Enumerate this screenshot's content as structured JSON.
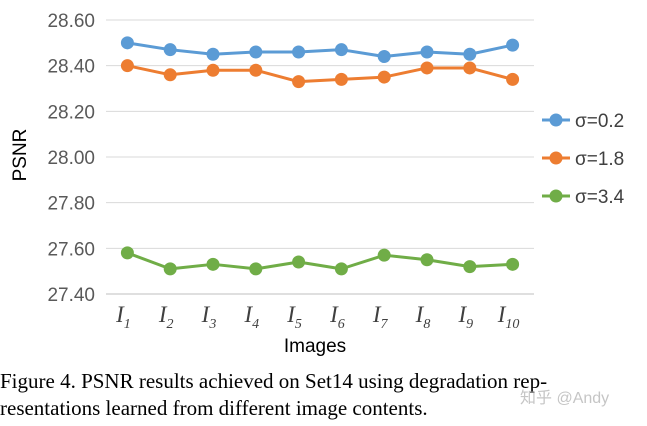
{
  "chart_data": {
    "type": "line",
    "xlabel": "Images",
    "ylabel": "PSNR",
    "ylim": [
      27.4,
      28.6
    ],
    "yticks": [
      "27.40",
      "27.60",
      "27.80",
      "28.00",
      "28.20",
      "28.40",
      "28.60"
    ],
    "grid": true,
    "legend_position": "right",
    "categories": [
      {
        "main": "I",
        "sub": "1"
      },
      {
        "main": "I",
        "sub": "2"
      },
      {
        "main": "I",
        "sub": "3"
      },
      {
        "main": "I",
        "sub": "4"
      },
      {
        "main": "I",
        "sub": "5"
      },
      {
        "main": "I",
        "sub": "6"
      },
      {
        "main": "I",
        "sub": "7"
      },
      {
        "main": "I",
        "sub": "8"
      },
      {
        "main": "I",
        "sub": "9"
      },
      {
        "main": "I",
        "sub": "10"
      }
    ],
    "series": [
      {
        "name": "σ=0.2",
        "color": "#5B9BD5",
        "values": [
          28.5,
          28.47,
          28.45,
          28.46,
          28.46,
          28.47,
          28.44,
          28.46,
          28.45,
          28.49
        ]
      },
      {
        "name": "σ=1.8",
        "color": "#ED7D31",
        "values": [
          28.4,
          28.36,
          28.38,
          28.38,
          28.33,
          28.34,
          28.35,
          28.39,
          28.39,
          28.34
        ]
      },
      {
        "name": "σ=3.4",
        "color": "#70AD47",
        "values": [
          27.58,
          27.51,
          27.53,
          27.51,
          27.54,
          27.51,
          27.57,
          27.55,
          27.52,
          27.53
        ]
      }
    ]
  },
  "caption": {
    "line1": "Figure 4. PSNR results achieved on Set14 using degradation rep-",
    "line2": "resentations learned from different image contents."
  },
  "watermark": "知乎 @Andy"
}
